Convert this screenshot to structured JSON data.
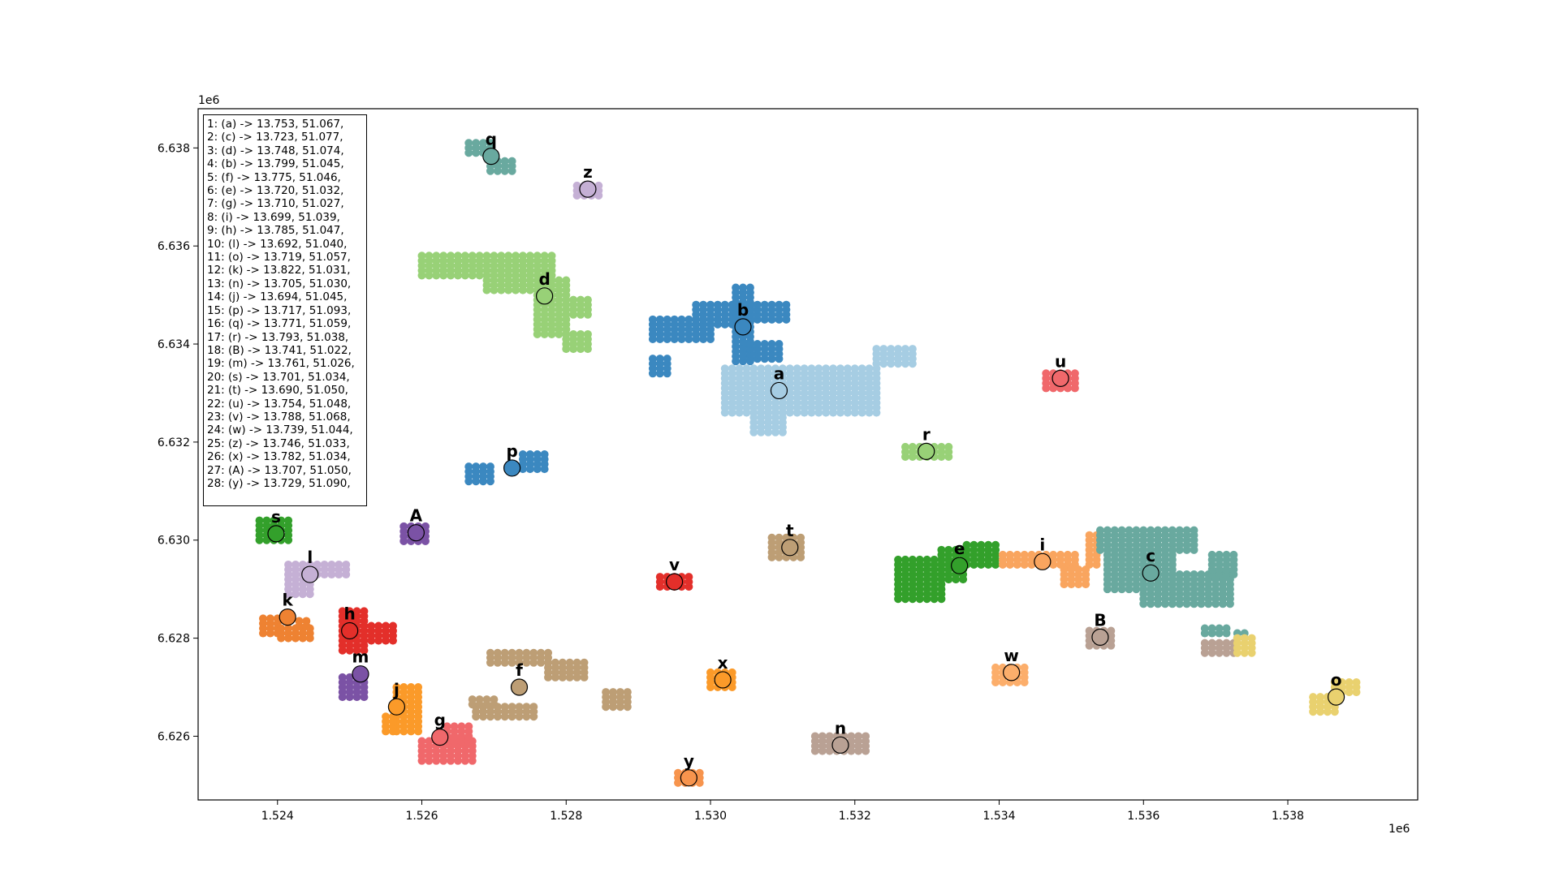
{
  "chart_data": {
    "type": "scatter",
    "title": "",
    "xlabel": "",
    "ylabel": "",
    "x_offset_label": "1e6",
    "y_offset_label": "1e6",
    "xlim": [
      1522900,
      1539800
    ],
    "ylim": [
      6624700,
      6638800
    ],
    "x_ticks": [
      1524000,
      1526000,
      1528000,
      1530000,
      1532000,
      1534000,
      1536000,
      1538000
    ],
    "x_tick_labels": [
      "1.524",
      "1.526",
      "1.528",
      "1.530",
      "1.532",
      "1.534",
      "1.536",
      "1.538"
    ],
    "y_ticks": [
      6626000,
      6628000,
      6630000,
      6632000,
      6634000,
      6636000,
      6638000
    ],
    "y_tick_labels": [
      "6.626",
      "6.628",
      "6.630",
      "6.632",
      "6.634",
      "6.636",
      "6.638"
    ],
    "grid": false,
    "legend_placement": "top-left",
    "legend_lines": [
      "1: (a) -> 13.753, 51.067,",
      "2: (c) -> 13.723, 51.077,",
      "3: (d) -> 13.748, 51.074,",
      "4: (b) -> 13.799, 51.045,",
      "5: (f) -> 13.775, 51.046,",
      "6: (e) -> 13.720, 51.032,",
      "7: (g) -> 13.710, 51.027,",
      "8: (i) -> 13.699, 51.039,",
      "9: (h) -> 13.785, 51.047,",
      "10: (l) -> 13.692, 51.040,",
      "11: (o) -> 13.719, 51.057,",
      "12: (k) -> 13.822, 51.031,",
      "13: (n) -> 13.705, 51.030,",
      "14: (j) -> 13.694, 51.045,",
      "15: (p) -> 13.717, 51.093,",
      "16: (q) -> 13.771, 51.059,",
      "17: (r) -> 13.793, 51.038,",
      "18: (B) -> 13.741, 51.022,",
      "19: (m) -> 13.761, 51.026,",
      "20: (s) -> 13.701, 51.034,",
      "21: (t) -> 13.690, 51.050,",
      "22: (u) -> 13.754, 51.048,",
      "23: (v) -> 13.788, 51.068,",
      "24: (w) -> 13.739, 51.044,",
      "25: (z) -> 13.746, 51.033,",
      "26: (x) -> 13.782, 51.034,",
      "27: (A) -> 13.707, 51.050,",
      "28: (y) -> 13.729, 51.090,"
    ],
    "clusters": [
      {
        "label": "q",
        "color": "#69a99f",
        "x": 1526960,
        "y": 6637830,
        "rects": [
          [
            1526650,
            1526950,
            6637900,
            6638150
          ],
          [
            1526950,
            1527300,
            6637530,
            6637800
          ]
        ]
      },
      {
        "label": "z",
        "color": "#c5b0d5",
        "x": 1528300,
        "y": 6637160,
        "rects": [
          [
            1528150,
            1528450,
            6637030,
            6637300
          ]
        ]
      },
      {
        "label": "d",
        "color": "#98d177",
        "x": 1527700,
        "y": 6634980,
        "rects": [
          [
            1526000,
            1526800,
            6635400,
            6635800
          ],
          [
            1526900,
            1527800,
            6635100,
            6635800
          ],
          [
            1527600,
            1528000,
            6634200,
            6635300
          ],
          [
            1528000,
            1528300,
            6634600,
            6634900
          ],
          [
            1528000,
            1528300,
            6633900,
            6634200
          ]
        ]
      },
      {
        "label": "b",
        "color": "#3b88c0",
        "x": 1530450,
        "y": 6634350,
        "rects": [
          [
            1529200,
            1530000,
            6634100,
            6634500
          ],
          [
            1529800,
            1530300,
            6634400,
            6634800
          ],
          [
            1530350,
            1530550,
            6633650,
            6635150
          ],
          [
            1530550,
            1531050,
            6634500,
            6634800
          ],
          [
            1530550,
            1530950,
            6633700,
            6634000
          ],
          [
            1529200,
            1529450,
            6633400,
            6633700
          ]
        ]
      },
      {
        "label": "a",
        "color": "#a6cde3",
        "x": 1530950,
        "y": 6633050,
        "rects": [
          [
            1530200,
            1532300,
            6632600,
            6633500
          ],
          [
            1530600,
            1531000,
            6632200,
            6632600
          ],
          [
            1532300,
            1532800,
            6633600,
            6633900
          ]
        ]
      },
      {
        "label": "u",
        "color": "#f0686b",
        "x": 1534850,
        "y": 6633300,
        "rects": [
          [
            1534650,
            1535050,
            6633100,
            6633400
          ]
        ]
      },
      {
        "label": "r",
        "color": "#98d177",
        "x": 1532990,
        "y": 6631810,
        "rects": [
          [
            1532700,
            1533350,
            6631700,
            6631950
          ]
        ]
      },
      {
        "label": "p",
        "color": "#3b88c0",
        "x": 1527250,
        "y": 6631470,
        "rects": [
          [
            1526650,
            1527000,
            6631200,
            6631500
          ],
          [
            1527400,
            1527750,
            6631450,
            6631800
          ]
        ]
      },
      {
        "label": "s",
        "color": "#33a02b",
        "x": 1523980,
        "y": 6630130,
        "rects": [
          [
            1523750,
            1524200,
            6630000,
            6630450
          ]
        ]
      },
      {
        "label": "A",
        "color": "#7b52a5",
        "x": 1525920,
        "y": 6630150,
        "rects": [
          [
            1525750,
            1526050,
            6629980,
            6630300
          ]
        ]
      },
      {
        "label": "t",
        "color": "#bd9e75",
        "x": 1531100,
        "y": 6629850,
        "rects": [
          [
            1530850,
            1531300,
            6629650,
            6630050
          ]
        ]
      },
      {
        "label": "l",
        "color": "#c5b0d5",
        "x": 1524450,
        "y": 6629300,
        "rects": [
          [
            1524150,
            1525000,
            6629300,
            6629500
          ],
          [
            1524150,
            1524500,
            6628900,
            6629300
          ]
        ]
      },
      {
        "label": "v",
        "color": "#e32f2a",
        "x": 1529500,
        "y": 6629150,
        "rects": [
          [
            1529300,
            1529700,
            6629050,
            6629300
          ]
        ]
      },
      {
        "label": "e",
        "color": "#33a02b",
        "x": 1533450,
        "y": 6629480,
        "rects": [
          [
            1532600,
            1533200,
            6628800,
            6629600
          ],
          [
            1533200,
            1533550,
            6629200,
            6629800
          ],
          [
            1533550,
            1533950,
            6629500,
            6629900
          ]
        ]
      },
      {
        "label": "i",
        "color": "#f9a55f",
        "x": 1534600,
        "y": 6629560,
        "rects": [
          [
            1534050,
            1535050,
            6629500,
            6629750
          ],
          [
            1534900,
            1535250,
            6629100,
            6629400
          ],
          [
            1535250,
            1535400,
            6629500,
            6630100
          ]
        ]
      },
      {
        "label": "c",
        "color": "#69a99f",
        "x": 1536100,
        "y": 6629330,
        "rects": [
          [
            1535400,
            1536750,
            6629800,
            6630200
          ],
          [
            1535500,
            1536400,
            6629000,
            6629800
          ],
          [
            1536000,
            1537250,
            6628700,
            6629300
          ],
          [
            1536950,
            1537250,
            6629300,
            6629700
          ],
          [
            1536850,
            1537150,
            6628100,
            6628200
          ],
          [
            1537300,
            1537450,
            6628000,
            6628100
          ]
        ]
      },
      {
        "label": "k",
        "color": "#ee8232",
        "x": 1524140,
        "y": 6628430,
        "rects": [
          [
            1523800,
            1524050,
            6628100,
            6628400
          ],
          [
            1524050,
            1524500,
            6628000,
            6628250
          ],
          [
            1524300,
            1524450,
            6628250,
            6628400
          ]
        ]
      },
      {
        "label": "h",
        "color": "#e32f2a",
        "x": 1525000,
        "y": 6628150,
        "rects": [
          [
            1524900,
            1525200,
            6627750,
            6628600
          ],
          [
            1525200,
            1525600,
            6627950,
            6628300
          ]
        ]
      },
      {
        "label": "B",
        "color": "#b9a194",
        "x": 1535400,
        "y": 6628020,
        "rects": [
          [
            1535250,
            1535600,
            6627850,
            6628150
          ],
          [
            1536850,
            1537300,
            6627700,
            6627900
          ]
        ]
      },
      {
        "label": "m",
        "color": "#7b52a5",
        "x": 1525150,
        "y": 6627270,
        "rects": [
          [
            1524900,
            1525200,
            6626800,
            6627200
          ]
        ]
      },
      {
        "label": "x",
        "color": "#fb9a29",
        "x": 1530170,
        "y": 6627150,
        "rects": [
          [
            1530000,
            1530350,
            6627000,
            6627300
          ]
        ]
      },
      {
        "label": "w",
        "color": "#fcae6b",
        "x": 1534170,
        "y": 6627300,
        "rects": [
          [
            1533950,
            1534350,
            6627100,
            6627400
          ]
        ]
      },
      {
        "label": "f",
        "color": "#bd9e75",
        "x": 1527350,
        "y": 6627000,
        "rects": [
          [
            1526950,
            1527750,
            6627500,
            6627700
          ],
          [
            1527750,
            1528250,
            6627200,
            6627500
          ],
          [
            1526750,
            1527550,
            6626400,
            6626650
          ],
          [
            1526700,
            1527000,
            6626650,
            6626800
          ],
          [
            1528550,
            1528850,
            6626600,
            6626900
          ]
        ]
      },
      {
        "label": "j",
        "color": "#fb9a29",
        "x": 1525650,
        "y": 6626600,
        "rects": [
          [
            1525650,
            1525950,
            6626100,
            6627000
          ],
          [
            1525500,
            1525650,
            6626100,
            6626400
          ]
        ]
      },
      {
        "label": "o",
        "color": "#e9d16f",
        "x": 1538670,
        "y": 6626800,
        "rects": [
          [
            1538350,
            1538650,
            6626500,
            6626800
          ],
          [
            1538650,
            1538950,
            6626900,
            6627100
          ],
          [
            1537300,
            1537550,
            6627700,
            6628000
          ]
        ]
      },
      {
        "label": "g",
        "color": "#f0686b",
        "x": 1526250,
        "y": 6625980,
        "rects": [
          [
            1526000,
            1526700,
            6625500,
            6625900
          ],
          [
            1526350,
            1526700,
            6625900,
            6626250
          ]
        ]
      },
      {
        "label": "n",
        "color": "#b9a194",
        "x": 1531800,
        "y": 6625820,
        "rects": [
          [
            1531450,
            1532200,
            6625700,
            6626000
          ]
        ]
      },
      {
        "label": "y",
        "color": "#f7944d",
        "x": 1529700,
        "y": 6625150,
        "rects": [
          [
            1529550,
            1529900,
            6625050,
            6625300
          ]
        ]
      }
    ]
  }
}
